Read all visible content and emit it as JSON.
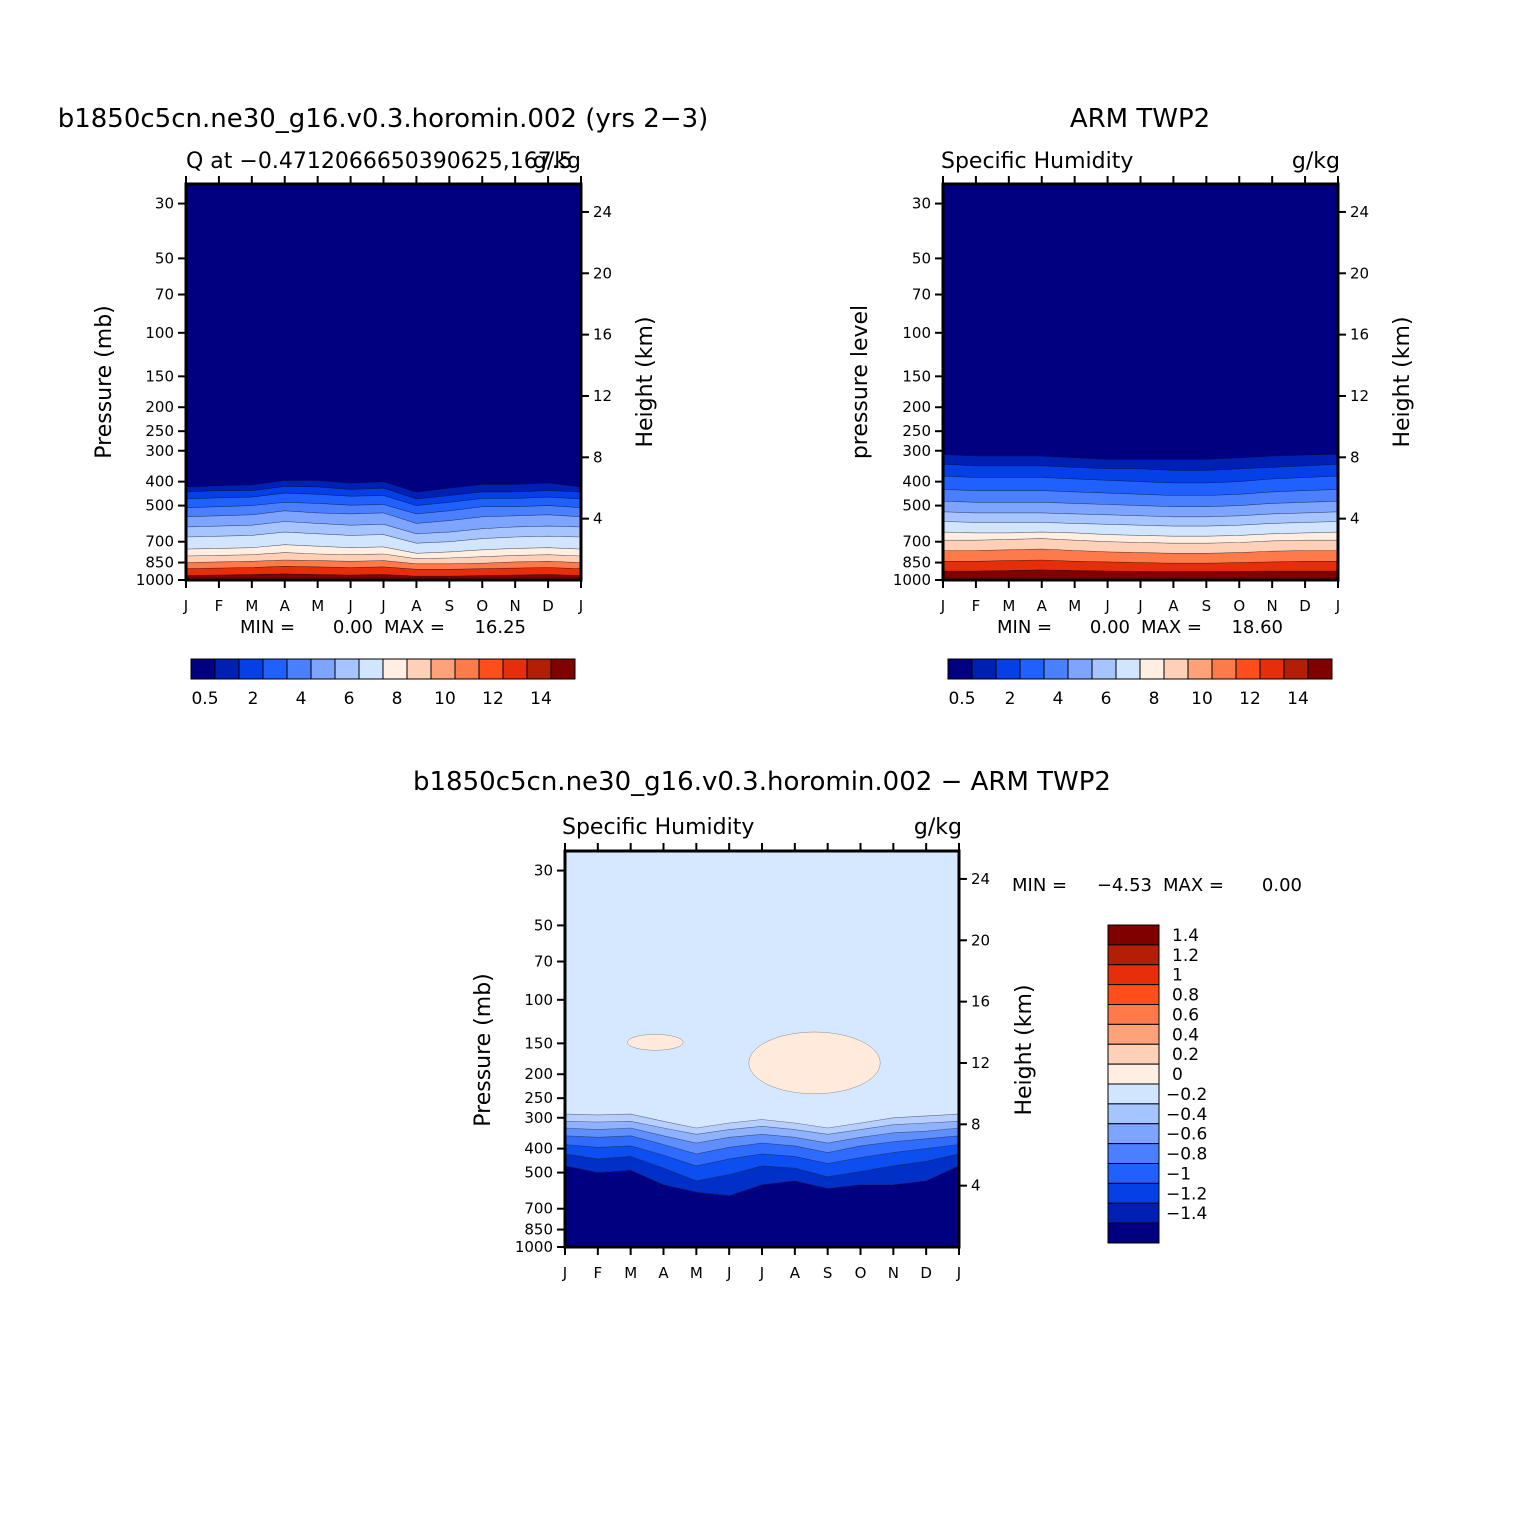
{
  "plot1": {
    "title": "b1850c5cn.ne30_g16.v0.3.horomin.002 (yrs 2−3)",
    "subtitle_left": "Q at −0.4712066650390625,167.5",
    "subtitle_right": "g/kg",
    "ylabel_left": "Pressure (mb)",
    "ylabel_right": "Height (km)",
    "min_label": "MIN =",
    "min_value": "0.00",
    "max_label": "MAX =",
    "max_value": "16.25"
  },
  "plot2": {
    "title": "ARM TWP2",
    "subtitle_left": "Specific Humidity",
    "subtitle_right": "g/kg",
    "ylabel_left": "pressure level",
    "ylabel_right": "Height (km)",
    "min_label": "MIN =",
    "min_value": "0.00",
    "max_label": "MAX =",
    "max_value": "18.60"
  },
  "plot3": {
    "title": "b1850c5cn.ne30_g16.v0.3.horomin.002 − ARM TWP2",
    "subtitle_left": "Specific Humidity",
    "subtitle_right": "g/kg",
    "ylabel_left": "Pressure (mb)",
    "ylabel_right": "Height (km)",
    "min_label": "MIN =",
    "min_value": "−4.53",
    "max_label": "MAX =",
    "max_value": "0.00"
  },
  "chart_data": [
    {
      "type": "heatmap",
      "title": "b1850c5cn.ne30_g16.v0.3.horomin.002 (yrs 2−3)",
      "x_ticks": [
        "J",
        "F",
        "M",
        "A",
        "M",
        "J",
        "J",
        "A",
        "S",
        "O",
        "N",
        "D",
        "J"
      ],
      "y_ticks": [
        "30",
        "50",
        "70",
        "100",
        "150",
        "200",
        "250",
        "300",
        "400",
        "500",
        "700",
        "850",
        "1000"
      ],
      "y_values": [
        30,
        50,
        70,
        100,
        150,
        200,
        250,
        300,
        400,
        500,
        700,
        850,
        1000
      ],
      "y_right_ticks": [
        "24",
        "20",
        "16",
        "12",
        "8",
        "4"
      ],
      "ylim": [
        1000,
        25
      ],
      "y_scale": "log",
      "colorbar_levels": [
        0.5,
        1,
        2,
        3,
        4,
        5,
        6,
        7,
        8,
        9,
        10,
        11,
        12,
        13,
        14
      ],
      "colorbar_tick_labels": [
        "0.5",
        "2",
        "4",
        "6",
        "8",
        "10",
        "12",
        "14"
      ],
      "colors": [
        "#000080",
        "#001fb3",
        "#0540e6",
        "#1f60ff",
        "#4a80ff",
        "#7da4ff",
        "#a6c4ff",
        "#d1e5ff",
        "#ffefe2",
        "#ffd0b8",
        "#ffa27a",
        "#ff7a4a",
        "#ff4e1a",
        "#e62e0a",
        "#b31e06",
        "#800000"
      ],
      "contour_levels_hPa_by_month": {
        "months": [
          0,
          1,
          2,
          3,
          4,
          5,
          6,
          7,
          8,
          9,
          10,
          11,
          12
        ],
        "q_0_5": [
          420,
          415,
          412,
          395,
          395,
          405,
          400,
          440,
          425,
          410,
          410,
          405,
          420
        ],
        "q_1": [
          440,
          435,
          435,
          418,
          420,
          430,
          425,
          470,
          455,
          440,
          440,
          435,
          440
        ],
        "q_2": [
          470,
          465,
          462,
          445,
          450,
          458,
          455,
          500,
          485,
          468,
          468,
          462,
          470
        ],
        "q_3": [
          510,
          505,
          500,
          485,
          490,
          498,
          495,
          540,
          525,
          505,
          505,
          500,
          510
        ],
        "q_4": [
          555,
          550,
          545,
          525,
          535,
          540,
          535,
          590,
          575,
          555,
          550,
          545,
          555
        ],
        "q_5": [
          610,
          605,
          600,
          580,
          590,
          600,
          595,
          650,
          640,
          620,
          610,
          605,
          610
        ],
        "q_6": [
          670,
          665,
          660,
          640,
          650,
          660,
          655,
          710,
          700,
          680,
          670,
          665,
          670
        ],
        "q_7": [
          750,
          745,
          740,
          720,
          730,
          740,
          735,
          780,
          770,
          755,
          745,
          740,
          750
        ],
        "q_8": [
          800,
          795,
          790,
          775,
          785,
          790,
          785,
          820,
          815,
          805,
          795,
          790,
          800
        ],
        "q_10": [
          850,
          845,
          840,
          830,
          835,
          840,
          835,
          860,
          860,
          855,
          845,
          840,
          850
        ],
        "q_12": [
          900,
          895,
          890,
          880,
          885,
          890,
          885,
          905,
          905,
          900,
          895,
          890,
          900
        ],
        "q_14": [
          960,
          955,
          950,
          945,
          950,
          955,
          950,
          965,
          965,
          960,
          955,
          950,
          960
        ]
      },
      "ylabel": "Pressure (mb)",
      "ylabel_right": "Height (km)"
    },
    {
      "type": "heatmap",
      "title": "ARM TWP2",
      "x_ticks": [
        "J",
        "F",
        "M",
        "A",
        "M",
        "J",
        "J",
        "A",
        "S",
        "O",
        "N",
        "D",
        "J"
      ],
      "y_ticks": [
        "30",
        "50",
        "70",
        "100",
        "150",
        "200",
        "250",
        "300",
        "400",
        "500",
        "700",
        "850",
        "1000"
      ],
      "y_values": [
        30,
        50,
        70,
        100,
        150,
        200,
        250,
        300,
        400,
        500,
        700,
        850,
        1000
      ],
      "y_right_ticks": [
        "24",
        "20",
        "16",
        "12",
        "8",
        "4"
      ],
      "ylim": [
        1000,
        25
      ],
      "y_scale": "log",
      "colorbar_levels": [
        0.5,
        1,
        2,
        3,
        4,
        5,
        6,
        7,
        8,
        9,
        10,
        11,
        12,
        13,
        14
      ],
      "colorbar_tick_labels": [
        "0.5",
        "2",
        "4",
        "6",
        "8",
        "10",
        "12",
        "14"
      ],
      "colors": [
        "#000080",
        "#001fb3",
        "#0540e6",
        "#1f60ff",
        "#4a80ff",
        "#7da4ff",
        "#a6c4ff",
        "#d1e5ff",
        "#ffefe2",
        "#ffd0b8",
        "#ffa27a",
        "#ff7a4a",
        "#ff4e1a",
        "#e62e0a",
        "#b31e06",
        "#800000"
      ],
      "contour_levels_hPa_by_month": {
        "months": [
          0,
          1,
          2,
          3,
          4,
          5,
          6,
          7,
          8,
          9,
          10,
          11,
          12
        ],
        "q_0_5": [
          310,
          315,
          315,
          315,
          320,
          325,
          325,
          325,
          325,
          320,
          315,
          312,
          310
        ],
        "q_1": [
          340,
          345,
          345,
          345,
          350,
          355,
          355,
          360,
          360,
          355,
          350,
          345,
          340
        ],
        "q_2": [
          380,
          385,
          385,
          385,
          390,
          395,
          400,
          405,
          405,
          400,
          390,
          385,
          380
        ],
        "q_3": [
          430,
          435,
          435,
          435,
          440,
          445,
          450,
          455,
          455,
          450,
          440,
          435,
          430
        ],
        "q_4": [
          480,
          485,
          485,
          485,
          490,
          495,
          500,
          505,
          505,
          500,
          490,
          485,
          480
        ],
        "q_5": [
          530,
          535,
          535,
          535,
          540,
          545,
          550,
          555,
          555,
          550,
          540,
          535,
          530
        ],
        "q_6": [
          580,
          585,
          585,
          585,
          590,
          595,
          600,
          605,
          605,
          600,
          590,
          585,
          580
        ],
        "q_7": [
          640,
          645,
          645,
          640,
          645,
          655,
          660,
          665,
          665,
          660,
          650,
          645,
          640
        ],
        "q_8": [
          690,
          690,
          685,
          680,
          690,
          700,
          705,
          710,
          710,
          705,
          695,
          690,
          690
        ],
        "q_10": [
          760,
          760,
          755,
          750,
          760,
          770,
          775,
          780,
          780,
          775,
          765,
          760,
          760
        ],
        "q_12": [
          840,
          840,
          835,
          830,
          840,
          845,
          850,
          855,
          855,
          850,
          845,
          840,
          840
        ],
        "q_14": [
          920,
          920,
          915,
          910,
          915,
          920,
          925,
          925,
          925,
          925,
          920,
          920,
          920
        ]
      },
      "ylabel": "pressure level",
      "ylabel_right": "Height (km)"
    },
    {
      "type": "heatmap",
      "title": "b1850c5cn.ne30_g16.v0.3.horomin.002 − ARM TWP2",
      "x_ticks": [
        "J",
        "F",
        "M",
        "A",
        "M",
        "J",
        "J",
        "A",
        "S",
        "O",
        "N",
        "D",
        "J"
      ],
      "y_ticks": [
        "30",
        "50",
        "70",
        "100",
        "150",
        "200",
        "250",
        "300",
        "400",
        "500",
        "700",
        "850",
        "1000"
      ],
      "y_values": [
        30,
        50,
        70,
        100,
        150,
        200,
        250,
        300,
        400,
        500,
        700,
        850,
        1000
      ],
      "y_right_ticks": [
        "24",
        "20",
        "16",
        "12",
        "8",
        "4"
      ],
      "ylim": [
        1000,
        25
      ],
      "y_scale": "log",
      "colorbar_levels": [
        -1.4,
        -1.2,
        -1,
        -0.8,
        -0.6,
        -0.4,
        -0.2,
        0,
        0.2,
        0.4,
        0.6,
        0.8,
        1,
        1.2,
        1.4
      ],
      "colorbar_tick_labels": [
        "1.4",
        "1.2",
        "1",
        "0.8",
        "0.6",
        "0.4",
        "0.2",
        "0",
        "−0.2",
        "−0.4",
        "−0.6",
        "−0.8",
        "−1",
        "−1.2",
        "−1.4"
      ],
      "colors": [
        "#000080",
        "#001fb3",
        "#0540e6",
        "#1f60ff",
        "#4a80ff",
        "#7da4ff",
        "#a6c4ff",
        "#d1e5ff",
        "#ffefe2",
        "#ffd0b8",
        "#ffa27a",
        "#ff7a4a",
        "#ff4e1a",
        "#e62e0a",
        "#b31e06",
        "#800000"
      ],
      "contour_levels_hPa_by_month": {
        "months": [
          0,
          1,
          2,
          3,
          4,
          5,
          6,
          7,
          8,
          9,
          10,
          11,
          12
        ],
        "d_m0_2": [
          290,
          292,
          290,
          310,
          330,
          315,
          305,
          315,
          330,
          315,
          300,
          295,
          290
        ],
        "d_m0_4": [
          310,
          312,
          310,
          330,
          350,
          335,
          325,
          335,
          350,
          335,
          320,
          315,
          310
        ],
        "d_m0_6": [
          330,
          335,
          330,
          355,
          380,
          360,
          350,
          360,
          380,
          360,
          345,
          340,
          330
        ],
        "d_m0_8": [
          355,
          360,
          355,
          385,
          420,
          395,
          380,
          390,
          415,
          390,
          375,
          365,
          355
        ],
        "d_m1": [
          385,
          395,
          390,
          425,
          470,
          440,
          420,
          430,
          460,
          435,
          415,
          400,
          385
        ],
        "d_m1_2": [
          420,
          440,
          430,
          480,
          540,
          510,
          470,
          480,
          520,
          495,
          470,
          450,
          420
        ],
        "d_m1_4": [
          470,
          500,
          490,
          560,
          600,
          620,
          560,
          540,
          580,
          560,
          560,
          540,
          470
        ]
      },
      "positive_patches": [
        {
          "month_start": 1.9,
          "month_end": 3.6,
          "p_top": 138,
          "p_bottom": 160
        },
        {
          "month_start": 5.6,
          "month_end": 9.6,
          "p_top": 135,
          "p_bottom": 240
        }
      ],
      "ylabel": "Pressure (mb)",
      "ylabel_right": "Height (km)"
    }
  ]
}
